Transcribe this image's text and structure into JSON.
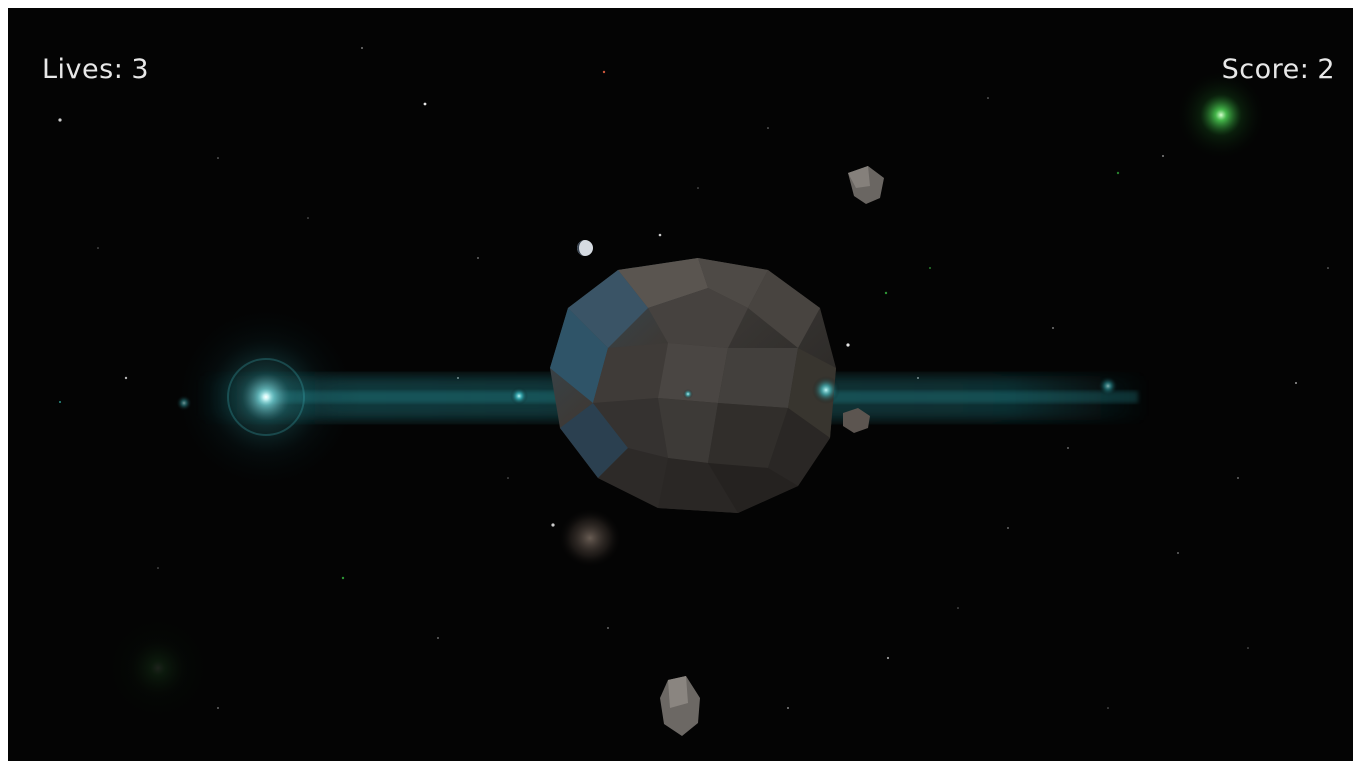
{
  "hud": {
    "lives_label": "Lives:",
    "lives_value": "3",
    "score_label": "Score:",
    "score_value": "2"
  },
  "colors": {
    "background": "#040404",
    "hud_text": "#e8e8e8",
    "planet": "#3f3b38",
    "planet_shadow": "#2a2725",
    "glow_cyan": "#4fd9e0",
    "glow_green": "#3ddc4a",
    "asteroid": "#5c5854"
  },
  "icons": {
    "player_ship": "cyan-glow-orb",
    "planet": "low-poly-planet",
    "asteroid": "low-poly-asteroid",
    "moon": "small-moon",
    "green_star": "green-glow-star",
    "dust_cloud": "dust-cloud"
  }
}
